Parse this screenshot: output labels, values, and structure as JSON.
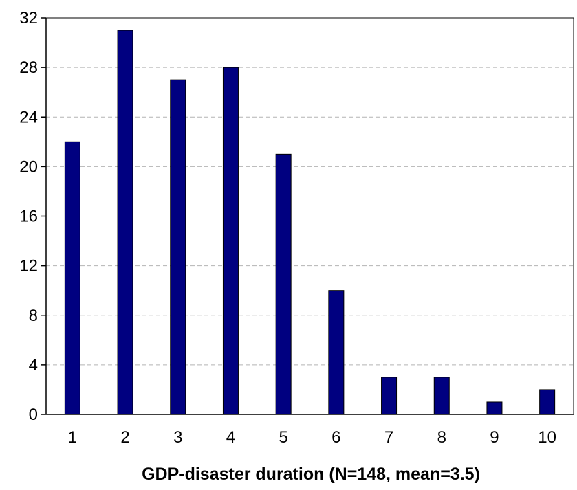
{
  "chart_data": {
    "type": "bar",
    "title": "",
    "xlabel": "GDP-disaster duration (N=148, mean=3.5)",
    "ylabel": "",
    "categories": [
      "1",
      "2",
      "3",
      "4",
      "5",
      "6",
      "7",
      "8",
      "9",
      "10"
    ],
    "values": [
      22,
      31,
      27,
      28,
      21,
      10,
      3,
      3,
      1,
      2
    ],
    "ylim": [
      0,
      32
    ],
    "yticks": [
      "0",
      "4",
      "8",
      "12",
      "16",
      "20",
      "24",
      "28",
      "32"
    ],
    "grid": true,
    "legend": "none",
    "bar_color": "#000080",
    "grid_color": "#b4b4b4"
  }
}
